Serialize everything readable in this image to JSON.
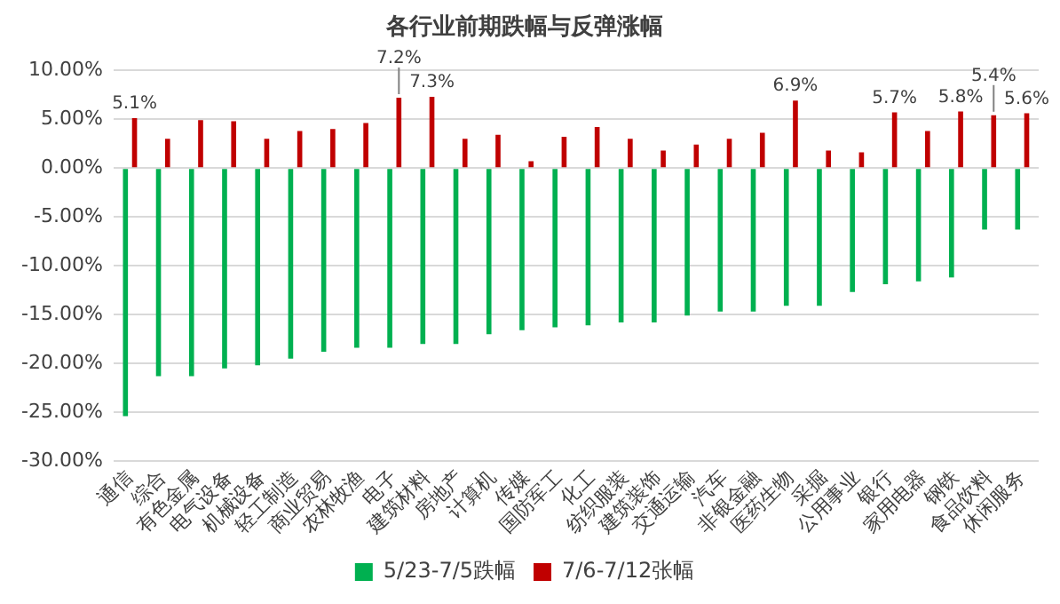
{
  "chart_data": {
    "type": "bar",
    "title": "各行业前期跌幅与反弹涨幅",
    "categories": [
      "通信",
      "综合",
      "有色金属",
      "电气设备",
      "机械设备",
      "轻工制造",
      "商业贸易",
      "农林牧渔",
      "电子",
      "建筑材料",
      "房地产",
      "计算机",
      "传媒",
      "国防军工",
      "化工",
      "纺织服装",
      "建筑装饰",
      "交通运输",
      "汽车",
      "非银金融",
      "医药生物",
      "采掘",
      "公用事业",
      "银行",
      "家用电器",
      "钢铁",
      "食品饮料",
      "休闲服务"
    ],
    "series": [
      {
        "name": "5/23-7/5跌幅",
        "color": "#00b050",
        "values": [
          -25.4,
          -21.3,
          -21.3,
          -20.5,
          -20.2,
          -19.5,
          -18.8,
          -18.4,
          -18.4,
          -18.0,
          -18.0,
          -17.0,
          -16.6,
          -16.3,
          -16.1,
          -15.8,
          -15.8,
          -15.1,
          -14.7,
          -14.7,
          -14.1,
          -14.1,
          -12.7,
          -11.9,
          -11.6,
          -11.2,
          -6.3,
          -6.3
        ]
      },
      {
        "name": "7/6-7/12张幅",
        "color": "#c00000",
        "values": [
          5.1,
          3.0,
          4.9,
          4.8,
          3.0,
          3.8,
          4.0,
          4.6,
          7.2,
          7.3,
          3.0,
          3.4,
          0.7,
          3.2,
          4.2,
          3.0,
          1.8,
          2.4,
          3.0,
          3.6,
          6.9,
          1.8,
          1.6,
          5.7,
          3.8,
          5.8,
          5.4,
          5.6
        ],
        "value_labels": [
          "5.1%",
          null,
          null,
          null,
          null,
          null,
          null,
          null,
          "7.2%",
          "7.3%",
          null,
          null,
          null,
          null,
          null,
          null,
          null,
          null,
          null,
          null,
          "6.9%",
          null,
          null,
          "5.7%",
          null,
          "5.8%",
          "5.4%",
          "5.6%"
        ]
      }
    ],
    "ylim": [
      -30,
      10
    ],
    "yticks": [
      {
        "value": -30,
        "label": "-30.00%"
      },
      {
        "value": -25,
        "label": "-25.00%"
      },
      {
        "value": -20,
        "label": "-20.00%"
      },
      {
        "value": -15,
        "label": "-15.00%"
      },
      {
        "value": -10,
        "label": "-10.00%"
      },
      {
        "value": -5,
        "label": "-5.00%"
      },
      {
        "value": 0,
        "label": "0.00%"
      },
      {
        "value": 5,
        "label": "5.00%"
      },
      {
        "value": 10,
        "label": "10.00%"
      }
    ],
    "grid": "y",
    "legend": "bottom"
  }
}
